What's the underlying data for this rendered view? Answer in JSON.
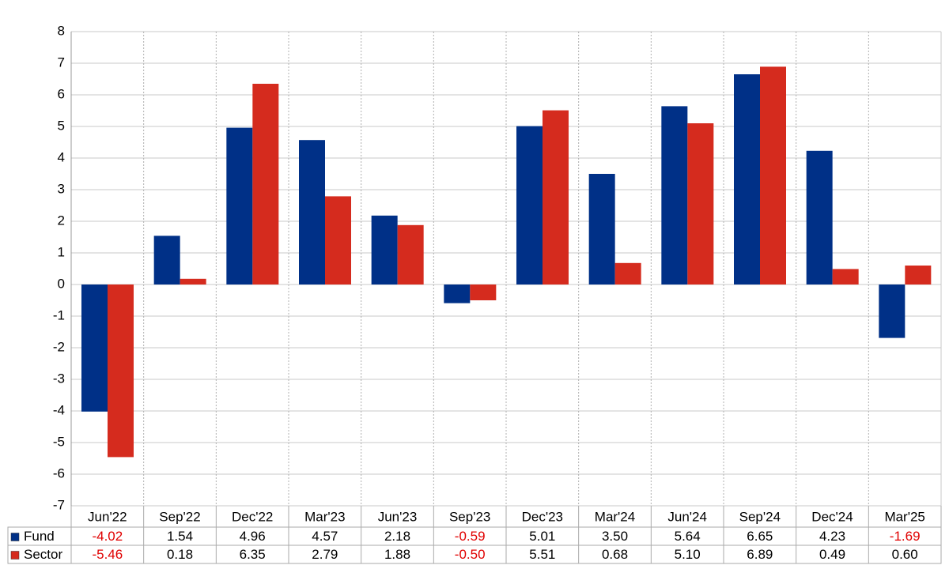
{
  "chart_data": {
    "type": "bar",
    "categories": [
      "Jun'22",
      "Sep'22",
      "Dec'22",
      "Mar'23",
      "Jun'23",
      "Sep'23",
      "Dec'23",
      "Mar'24",
      "Jun'24",
      "Sep'24",
      "Dec'24",
      "Mar'25"
    ],
    "series": [
      {
        "name": "Fund",
        "color": "#003087",
        "values": [
          -4.02,
          1.54,
          4.96,
          4.57,
          2.18,
          -0.59,
          5.01,
          3.5,
          5.64,
          6.65,
          4.23,
          -1.69
        ],
        "value_labels": [
          "-4.02",
          "1.54",
          "4.96",
          "4.57",
          "2.18",
          "-0.59",
          "5.01",
          "3.50",
          "5.64",
          "6.65",
          "4.23",
          "-1.69"
        ]
      },
      {
        "name": "Sector",
        "color": "#d52b1e",
        "values": [
          -5.46,
          0.18,
          6.35,
          2.79,
          1.88,
          -0.5,
          5.51,
          0.68,
          5.1,
          6.89,
          0.49,
          0.6
        ],
        "value_labels": [
          "-5.46",
          "0.18",
          "6.35",
          "2.79",
          "1.88",
          "-0.50",
          "5.51",
          "0.68",
          "5.10",
          "6.89",
          "0.49",
          "0.60"
        ]
      }
    ],
    "ylim": [
      -7,
      8
    ],
    "yticks": [
      -7,
      -6,
      -5,
      -4,
      -3,
      -2,
      -1,
      0,
      1,
      2,
      3,
      4,
      5,
      6,
      7,
      8
    ],
    "grid": true
  }
}
